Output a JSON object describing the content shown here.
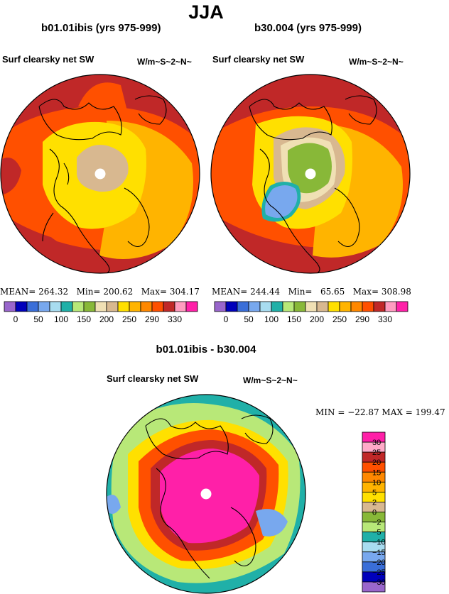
{
  "season": "JJA",
  "units": "W/m~S~2~N~",
  "panels": [
    {
      "title": "b01.01ibis (yrs 975-999)",
      "variable": "Surf clearsky net SW",
      "units": "W/m~S~2~N~",
      "stats": {
        "mean_label": "MEAN=",
        "mean": "264.32",
        "min_label": "Min=",
        "min": "200.62",
        "max_label": "Max=",
        "max": "304.17"
      }
    },
    {
      "title": "b30.004 (yrs 975-999)",
      "variable": "Surf clearsky net SW",
      "units": "W/m~S~2~N~",
      "stats": {
        "mean_label": "MEAN=",
        "mean": "244.44",
        "min_label": "Min=",
        "min": "65.65",
        "max_label": "Max=",
        "max": "308.98"
      }
    }
  ],
  "diff": {
    "title": "b01.01ibis - b30.004",
    "variable": "Surf clearsky net SW",
    "units": "W/m~S~2~N~",
    "stats_text": "MIN = −22.87  MAX = 199.47"
  },
  "colorbar_labels": [
    "0",
    "50",
    "100",
    "150",
    "200",
    "250",
    "290",
    "330"
  ],
  "colorbar_colors": [
    "#9966cc",
    "#0000bb",
    "#3a6ed8",
    "#78a8ee",
    "#a8dcf0",
    "#20b0a8",
    "#b8e878",
    "#88b838",
    "#f0e0b4",
    "#d8b890",
    "#ffe000",
    "#ffb400",
    "#ff8800",
    "#ff5000",
    "#c02828",
    "#ff9cc0",
    "#ff20a8"
  ],
  "diff_colorbar": {
    "labels": [
      "30",
      "25",
      "20",
      "15",
      "10",
      "5",
      "2",
      "0",
      "−2",
      "−5",
      "−10",
      "−15",
      "−20",
      "−25",
      "−30"
    ],
    "colors": [
      "#ff20a8",
      "#ffaac8",
      "#c02828",
      "#ff5000",
      "#ff8800",
      "#ffb400",
      "#ffe000",
      "#d8b890",
      "#88b838",
      "#b8e878",
      "#20b0a8",
      "#a8dcf0",
      "#78a8ee",
      "#3a6ed8",
      "#0000bb",
      "#9966cc"
    ]
  },
  "chart_data": [
    {
      "type": "heatmap",
      "title": "b01.01ibis (yrs 975-999)",
      "variable": "Surf clearsky net SW",
      "units": "W/m~S~2~N~",
      "projection": "polar stereographic (north)",
      "mean": 264.32,
      "min": 200.62,
      "max": 304.17,
      "levels": [
        0,
        50,
        100,
        150,
        200,
        250,
        290,
        330
      ]
    },
    {
      "type": "heatmap",
      "title": "b30.004 (yrs 975-999)",
      "variable": "Surf clearsky net SW",
      "units": "W/m~S~2~N~",
      "projection": "polar stereographic (north)",
      "mean": 244.44,
      "min": 65.65,
      "max": 308.98,
      "levels": [
        0,
        50,
        100,
        150,
        200,
        250,
        290,
        330
      ]
    },
    {
      "type": "heatmap",
      "title": "b01.01ibis - b30.004",
      "variable": "Surf clearsky net SW",
      "units": "W/m~S~2~N~",
      "projection": "polar stereographic (north)",
      "min": -22.87,
      "max": 199.47,
      "levels": [
        -30,
        -25,
        -20,
        -15,
        -10,
        -5,
        -2,
        0,
        2,
        5,
        10,
        15,
        20,
        25,
        30
      ]
    }
  ]
}
